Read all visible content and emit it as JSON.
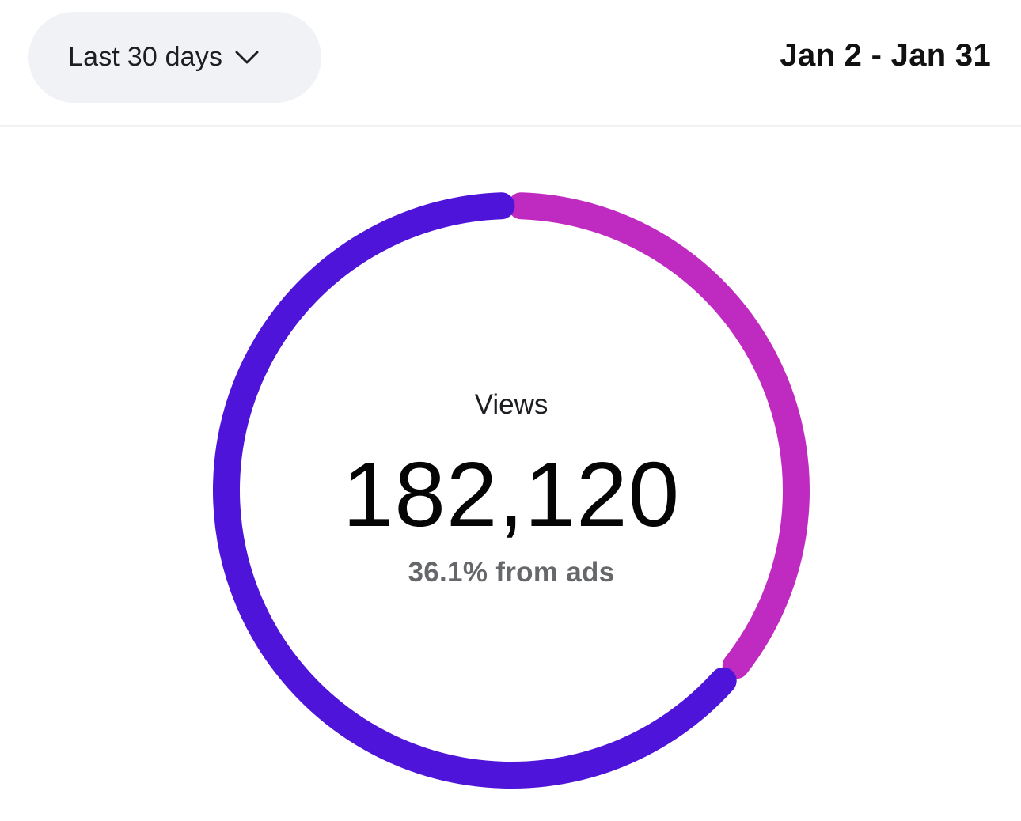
{
  "filter": {
    "selected": "Last 30 days",
    "icon": "chevron-down-icon"
  },
  "date_range": "Jan 2 - Jan 31",
  "metric": {
    "label": "Views",
    "value": "182,120",
    "subtitle": "36.1% from ads"
  },
  "chart_data": {
    "type": "pie",
    "total": 182120,
    "segments": [
      {
        "percent": 36.1,
        "color": "#bf2bc0"
      },
      {
        "percent": 63.9,
        "color": "#4f14d9"
      }
    ]
  }
}
